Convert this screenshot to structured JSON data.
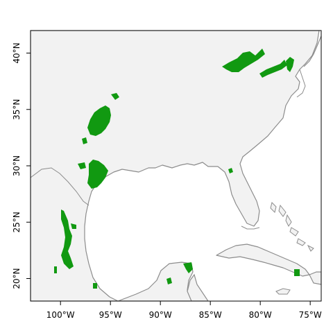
{
  "map": {
    "colors": {
      "land": "#f2f2f2",
      "sea": "#ffffff",
      "coast": "#8c8c8c",
      "presence": "#119911",
      "frame": "#000000"
    },
    "x_ticks": [
      {
        "value": -100,
        "label": "100°W"
      },
      {
        "value": -95,
        "label": "95°W"
      },
      {
        "value": -90,
        "label": "90°W"
      },
      {
        "value": -85,
        "label": "85°W"
      },
      {
        "value": -80,
        "label": "80°W"
      },
      {
        "value": -75,
        "label": "75°W"
      }
    ],
    "y_ticks": [
      {
        "value": 20,
        "label": "20°N"
      },
      {
        "value": 25,
        "label": "25°N"
      },
      {
        "value": 30,
        "label": "30°N"
      },
      {
        "value": 35,
        "label": "35°N"
      },
      {
        "value": 40,
        "label": "40°N"
      }
    ],
    "extent": {
      "lon_min": -103,
      "lon_max": -73.9,
      "lat_min": 18,
      "lat_max": 42
    }
  }
}
